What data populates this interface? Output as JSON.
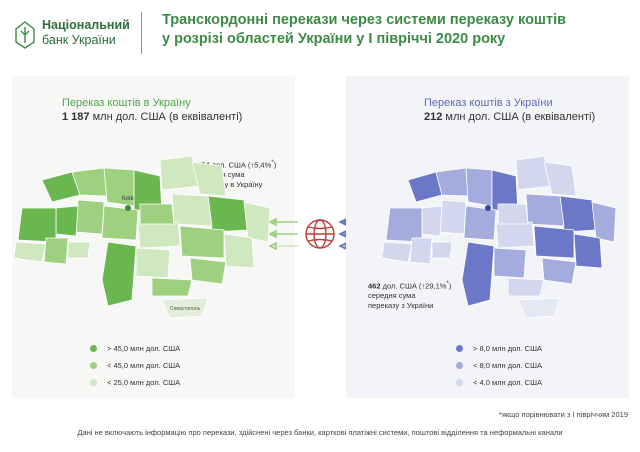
{
  "logo": {
    "line1": "Національний",
    "line2": "банк України"
  },
  "title": {
    "line1": "Транскордонні перекази через системи переказу коштів",
    "line2": "у розрізі областей України у І півріччі 2020 року"
  },
  "left": {
    "heading": "Переказ коштів в Україну",
    "amount": "1 187",
    "amount_suffix": " млн дол. США (в еквіваленті)",
    "note_value": "374",
    "note_rest": " дол. США (↑5,4%",
    "note_sup": "*",
    "note_end": ")",
    "note_line2": "середня сума",
    "note_line3": "переказу в Україну",
    "legend": [
      {
        "label": "> 45,0 млн дол. США",
        "color": "#6ab64f"
      },
      {
        "label": "< 45,0 млн дол. США",
        "color": "#9dd07f"
      },
      {
        "label": "< 25,0 млн дол. США",
        "color": "#cfe8bf"
      }
    ]
  },
  "right": {
    "heading": "Переказ коштів з України",
    "amount": "212",
    "amount_suffix": " млн дол. США (в еквіваленті)",
    "note_value": "462",
    "note_rest": " дол. США (↑29,1%",
    "note_sup": "*",
    "note_end": ")",
    "note_line2": "середня сума",
    "note_line3": "переказу з України",
    "legend": [
      {
        "label": "> 8,0 млн дол. США",
        "color": "#6b78c8"
      },
      {
        "label": "< 8,0 млн дол. США",
        "color": "#a3acdd"
      },
      {
        "label": "< 4,0 млн дол. США",
        "color": "#d3d7ee"
      }
    ]
  },
  "map_labels": {
    "kyiv": "Київ",
    "crimea": "Севастополь"
  },
  "colors": {
    "green_arrow": "#9fd07f",
    "blue_arrow": "#6b78c8"
  },
  "footnote": "*якщо порівнювати з І півріччям 2019",
  "footer": "Дані не включають інформацію про перекази, здійснені через банки, карткові  платіжні системи, поштові відділення та неформальні канали"
}
